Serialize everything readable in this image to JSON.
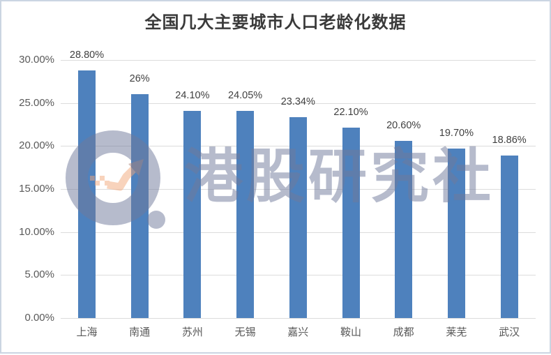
{
  "chart_data": {
    "type": "bar",
    "title": "全国几大主要城市人口老龄化数据",
    "categories": [
      "上海",
      "南通",
      "苏州",
      "无锡",
      "嘉兴",
      "鞍山",
      "成都",
      "莱芜",
      "武汉"
    ],
    "values": [
      28.8,
      26,
      24.1,
      24.05,
      23.34,
      22.1,
      20.6,
      19.7,
      18.86
    ],
    "data_labels": [
      "28.80%",
      "26%",
      "24.10%",
      "24.05%",
      "23.34%",
      "22.10%",
      "20.60%",
      "19.70%",
      "18.86%"
    ],
    "y_ticks": [
      "30.00%",
      "25.00%",
      "20.00%",
      "15.00%",
      "10.00%",
      "5.00%",
      "0.00%"
    ],
    "ylim": [
      0,
      30
    ],
    "xlabel": "",
    "ylabel": "",
    "grid": true,
    "legend": "none",
    "bar_color": "#4e81bd",
    "gridline_color": "#dcdcdc",
    "axis_text_color": "#595959",
    "data_label_color": "#3f3f3f",
    "title_color": "#3a3a3a"
  },
  "watermark": {
    "text": "港股研究社",
    "logo": "magnifier-growth-arrow-logo",
    "gray_color": "#707a9b",
    "arrow_color": "#f2a87c",
    "arrowhead_color": "#ad8277"
  },
  "frame": {
    "border_color": "#cbd5e2"
  }
}
